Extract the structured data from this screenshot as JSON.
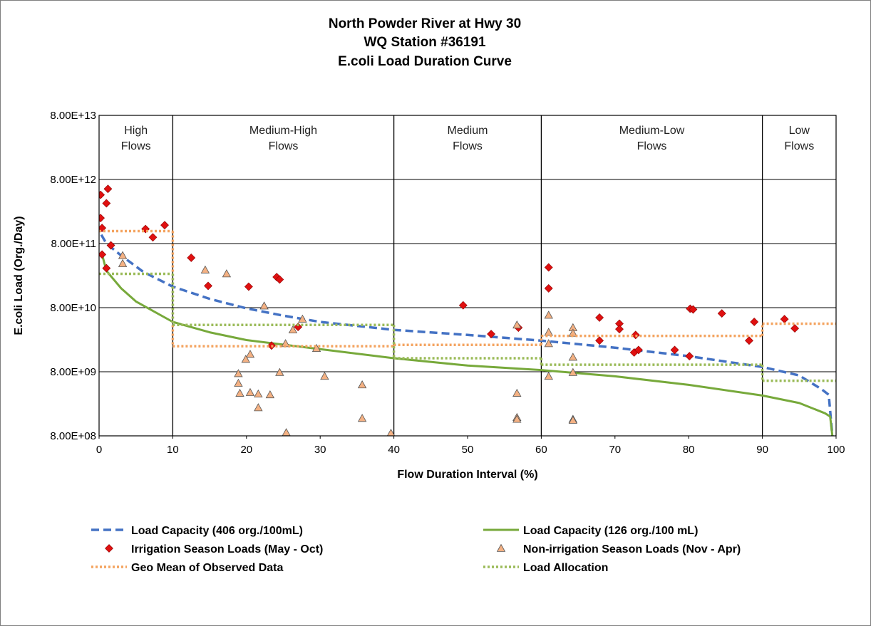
{
  "chart_data": {
    "type": "scatter",
    "title_lines": [
      "North Powder River at Hwy 30",
      "WQ Station #36191",
      "E.coli Load Duration Curve"
    ],
    "xlabel": "Flow Duration Interval (%)",
    "ylabel": "E.coli Load (Org./Day)",
    "xlim": [
      0,
      100
    ],
    "ylim": [
      800000000,
      80000000000000
    ],
    "y_scale": "log",
    "x_ticks": [
      "0",
      "10",
      "20",
      "30",
      "40",
      "50",
      "60",
      "70",
      "80",
      "90",
      "100"
    ],
    "y_ticks": [
      {
        "value": 800000000,
        "label": "8.00E+08"
      },
      {
        "value": 8000000000,
        "label": "8.00E+09"
      },
      {
        "value": 80000000000,
        "label": "8.00E+10"
      },
      {
        "value": 800000000000,
        "label": "8.00E+11"
      },
      {
        "value": 8000000000000,
        "label": "8.00E+12"
      },
      {
        "value": 80000000000000,
        "label": "8.00E+13"
      }
    ],
    "grid": true,
    "regions": [
      {
        "label_lines": [
          "High",
          "Flows"
        ],
        "x_start": 0,
        "x_end": 10
      },
      {
        "label_lines": [
          "Medium-High",
          "Flows"
        ],
        "x_start": 10,
        "x_end": 40
      },
      {
        "label_lines": [
          "Medium",
          "Flows"
        ],
        "x_start": 40,
        "x_end": 60
      },
      {
        "label_lines": [
          "Medium-Low",
          "Flows"
        ],
        "x_start": 60,
        "x_end": 90
      },
      {
        "label_lines": [
          "Low",
          "Flows"
        ],
        "x_start": 90,
        "x_end": 100
      }
    ],
    "legend_position": "bottom",
    "series": [
      {
        "name": "Load Capacity (406 org./100mL)",
        "kind": "line",
        "color": "#4472c4",
        "dash": "dashed",
        "points": [
          [
            0.3,
            1100000000000
          ],
          [
            1,
            800000000000
          ],
          [
            3,
            520000000000
          ],
          [
            6,
            290000000000
          ],
          [
            10,
            170000000000
          ],
          [
            15,
            110000000000
          ],
          [
            20,
            78000000000
          ],
          [
            25,
            60000000000
          ],
          [
            30,
            48000000000
          ],
          [
            40,
            36000000000
          ],
          [
            50,
            30000000000
          ],
          [
            60,
            24500000000
          ],
          [
            70,
            19000000000
          ],
          [
            80,
            14000000000
          ],
          [
            90,
            9500000000
          ],
          [
            95,
            7000000000
          ],
          [
            98,
            4300000000
          ],
          [
            99,
            3500000000
          ],
          [
            99.5,
            800000000
          ]
        ]
      },
      {
        "name": "Load Capacity (126 org./100 mL)",
        "kind": "line",
        "color": "#77a93b",
        "dash": "solid",
        "points": [
          [
            0.3,
            600000000000
          ],
          [
            1,
            300000000000
          ],
          [
            3,
            160000000000
          ],
          [
            5,
            100000000000
          ],
          [
            10,
            48000000000
          ],
          [
            15,
            33000000000
          ],
          [
            20,
            25000000000
          ],
          [
            30,
            18000000000
          ],
          [
            40,
            13000000000
          ],
          [
            50,
            10000000000
          ],
          [
            60,
            8500000000
          ],
          [
            70,
            6800000000
          ],
          [
            80,
            5000000000
          ],
          [
            90,
            3400000000
          ],
          [
            95,
            2600000000
          ],
          [
            98.5,
            1800000000
          ],
          [
            99.2,
            1600000000
          ],
          [
            99.5,
            800000000
          ]
        ]
      },
      {
        "name": "Irrigation Season Loads (May - Oct)",
        "kind": "scatter",
        "marker": "diamond",
        "color": "#e01010",
        "points": [
          [
            0.2,
            4600000000000
          ],
          [
            1.2,
            5700000000000
          ],
          [
            1,
            3400000000000
          ],
          [
            0.2,
            2000000000000
          ],
          [
            0.4,
            1400000000000
          ],
          [
            1.6,
            750000000000
          ],
          [
            0.4,
            540000000000
          ],
          [
            1,
            330000000000
          ],
          [
            6.3,
            1350000000000
          ],
          [
            7.3,
            1000000000000
          ],
          [
            8.9,
            1550000000000
          ],
          [
            12.5,
            480000000000
          ],
          [
            14.8,
            175000000000
          ],
          [
            20.3,
            170000000000
          ],
          [
            24.1,
            240000000000
          ],
          [
            24.5,
            220000000000
          ],
          [
            27,
            40000000000
          ],
          [
            23.4,
            20500000000
          ],
          [
            49.4,
            87000000000
          ],
          [
            53.2,
            31000000000
          ],
          [
            56.9,
            39000000000
          ],
          [
            61,
            340000000000
          ],
          [
            61,
            160000000000
          ],
          [
            67.9,
            56000000000
          ],
          [
            67.9,
            24500000000
          ],
          [
            70.6,
            45000000000
          ],
          [
            70.6,
            37000000000
          ],
          [
            72.8,
            30000000000
          ],
          [
            72.6,
            16000000000
          ],
          [
            73.2,
            17500000000
          ],
          [
            78.1,
            17500000000
          ],
          [
            80.1,
            14000000000
          ],
          [
            80.2,
            77000000000
          ],
          [
            80.6,
            75000000000
          ],
          [
            84.5,
            65000000000
          ],
          [
            88.9,
            48000000000
          ],
          [
            88.2,
            24500000000
          ],
          [
            93,
            53000000000
          ],
          [
            94.4,
            38000000000
          ]
        ]
      },
      {
        "name": "Non-irrigation Season Loads (Nov - Apr)",
        "kind": "scatter",
        "marker": "triangle",
        "color": "#f4b183",
        "edge": "#555555",
        "points": [
          [
            3.2,
            520000000000
          ],
          [
            3.2,
            390000000000
          ],
          [
            17.3,
            270000000000
          ],
          [
            14.4,
            310000000000
          ],
          [
            22.4,
            85000000000
          ],
          [
            27.6,
            53000000000
          ],
          [
            26.3,
            36000000000
          ],
          [
            25.3,
            22000000000
          ],
          [
            29.5,
            18500000000
          ],
          [
            20.5,
            15000000000
          ],
          [
            19.9,
            12500000000
          ],
          [
            18.9,
            7500000000
          ],
          [
            18.9,
            5300000000
          ],
          [
            19.1,
            3700000000
          ],
          [
            24.5,
            7800000000
          ],
          [
            21.6,
            3600000000
          ],
          [
            20.5,
            3800000000
          ],
          [
            23.2,
            3500000000
          ],
          [
            21.6,
            2200000000
          ],
          [
            30.6,
            6800000000
          ],
          [
            35.7,
            5000000000
          ],
          [
            35.7,
            1500000000
          ],
          [
            25.4,
            900000000
          ],
          [
            39.6,
            880000000
          ],
          [
            56.7,
            43000000000
          ],
          [
            56.7,
            3700000000
          ],
          [
            56.7,
            1550000000
          ],
          [
            56.7,
            1450000000
          ],
          [
            61,
            61000000000
          ],
          [
            61,
            33000000000
          ],
          [
            61,
            22000000000
          ],
          [
            61,
            6800000000
          ],
          [
            64.3,
            39000000000
          ],
          [
            64.3,
            32000000000
          ],
          [
            64.3,
            13500000000
          ],
          [
            64.3,
            7800000000
          ],
          [
            64.3,
            1450000000
          ],
          [
            64.3,
            1400000000
          ]
        ]
      },
      {
        "name": "Geo Mean of Observed Data",
        "kind": "step",
        "color": "#f4a460",
        "dash": "dotted",
        "segments": [
          [
            0,
            10,
            1250000000000
          ],
          [
            10,
            40,
            20000000000
          ],
          [
            40,
            60,
            21000000000
          ],
          [
            60,
            90,
            29000000000
          ],
          [
            90,
            100,
            45000000000
          ]
        ]
      },
      {
        "name": "Load Allocation",
        "kind": "step",
        "color": "#9bbb59",
        "dash": "dotted",
        "segments": [
          [
            0,
            10,
            270000000000
          ],
          [
            10,
            40,
            43000000000
          ],
          [
            40,
            60,
            13000000000
          ],
          [
            60,
            90,
            10300000000
          ],
          [
            90,
            100,
            5800000000
          ]
        ]
      }
    ]
  }
}
